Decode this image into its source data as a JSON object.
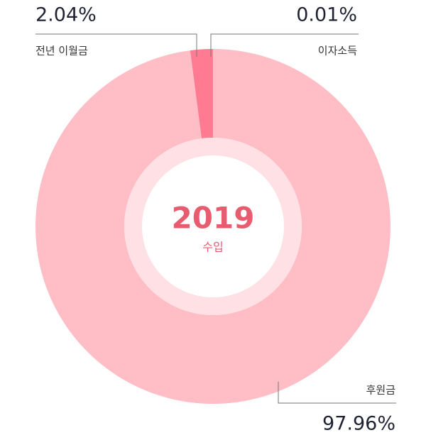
{
  "chart_data": {
    "type": "pie",
    "title": "2019",
    "subtitle": "수입",
    "categories": [
      "후원금",
      "전년 이월금",
      "이자소득"
    ],
    "values": [
      97.96,
      2.04,
      0.01
    ],
    "value_labels": [
      "97.96%",
      "2.04%",
      "0.01%"
    ],
    "colors": [
      "#ffbdc5",
      "#ff7b91",
      "#ff3d63"
    ]
  }
}
